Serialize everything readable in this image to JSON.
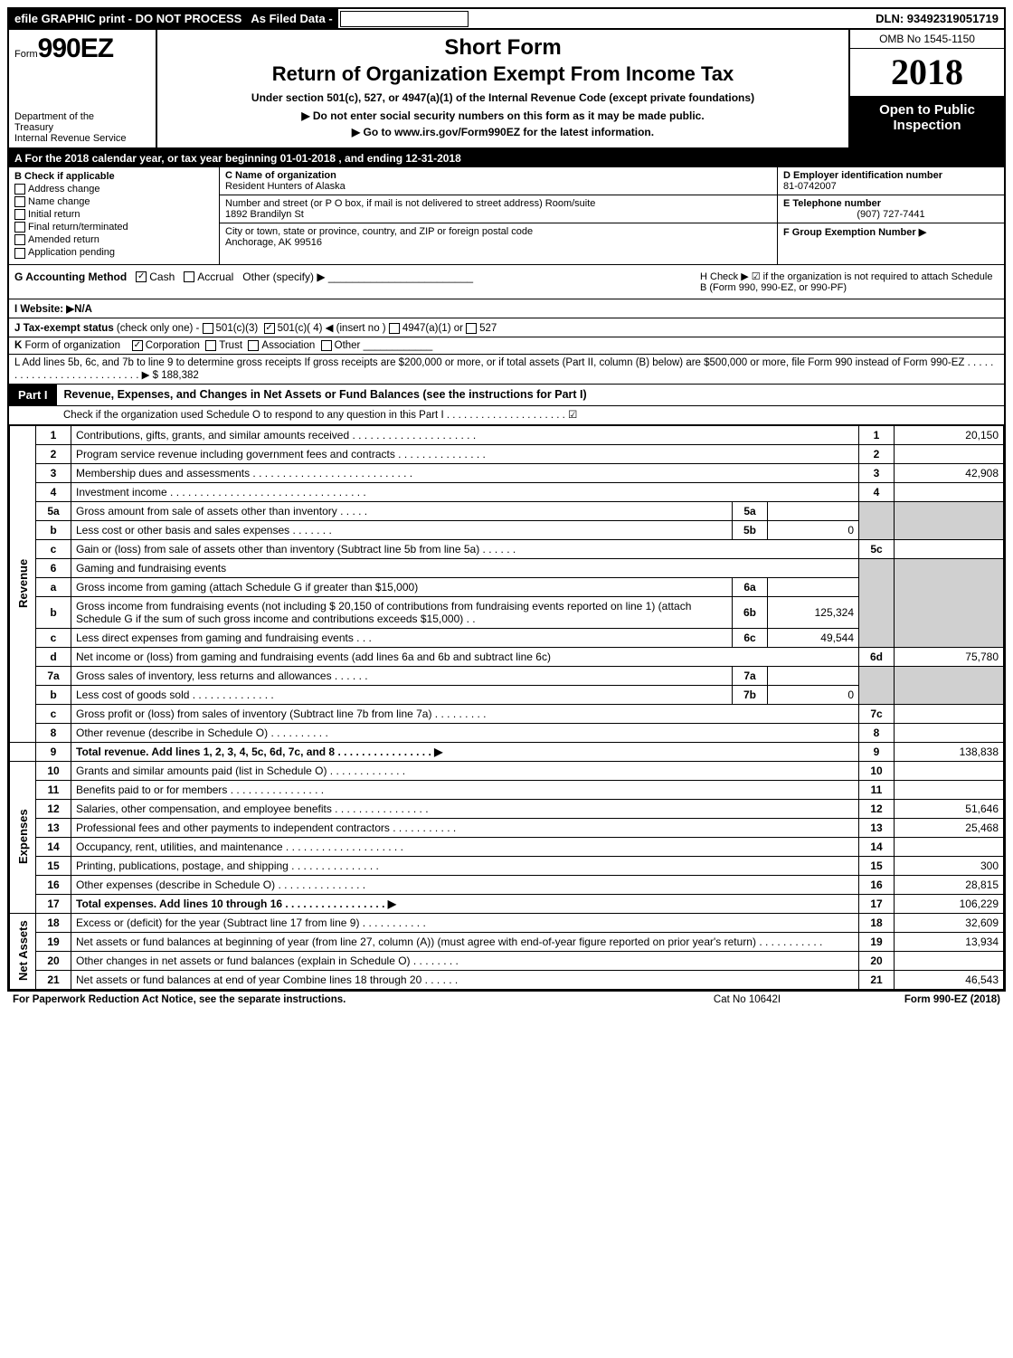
{
  "topbar": {
    "efile": "efile GRAPHIC print - DO NOT PROCESS",
    "asfiled": "As Filed Data -",
    "dln": "DLN: 93492319051719"
  },
  "header": {
    "form_prefix": "Form",
    "form_no": "990EZ",
    "short": "Short Form",
    "title": "Return of Organization Exempt From Income Tax",
    "sub": "Under section 501(c), 527, or 4947(a)(1) of the Internal Revenue Code (except private foundations)",
    "warn": "▶ Do not enter social security numbers on this form as it may be made public.",
    "goto": "▶ Go to www.irs.gov/Form990EZ for the latest information.",
    "dept1": "Department of the",
    "dept2": "Treasury",
    "dept3": "Internal Revenue Service",
    "omb": "OMB No 1545-1150",
    "year": "2018",
    "open_public": "Open to Public Inspection"
  },
  "rowA": "A  For the 2018 calendar year, or tax year beginning 01-01-2018          , and ending 12-31-2018",
  "colB": {
    "hdr": "B  Check if applicable",
    "items": [
      "Address change",
      "Name change",
      "Initial return",
      "Final return/terminated",
      "Amended return",
      "Application pending"
    ]
  },
  "colC": {
    "name_label": "C Name of organization",
    "name": "Resident Hunters of Alaska",
    "addr_label": "Number and street (or P O box, if mail is not delivered to street address)  Room/suite",
    "addr": "1892 Brandilyn St",
    "city_label": "City or town, state or province, country, and ZIP or foreign postal code",
    "city": "Anchorage, AK  99516"
  },
  "colD": {
    "d_label": "D Employer identification number",
    "ein": "81-0742007",
    "e_label": "E Telephone number",
    "phone": "(907) 727-7441",
    "f_label": "F Group Exemption Number   ▶"
  },
  "rowG": {
    "label": "G Accounting Method",
    "cash": "Cash",
    "accrual": "Accrual",
    "other": "Other (specify) ▶",
    "h": "H   Check ▶  ☑  if the organization is not required to attach Schedule B (Form 990, 990-EZ, or 990-PF)"
  },
  "rowI": "I Website: ▶N/A",
  "rowJ": "J Tax-exempt status (check only one) - ☐ 501(c)(3)  ☑ 501(c)( 4) ◀ (insert no ) ☐ 4947(a)(1) or ☐ 527",
  "rowK": "K Form of organization    ☑ Corporation  ☐ Trust  ☐ Association  ☐ Other",
  "rowL": {
    "text": "L Add lines 5b, 6c, and 7b to line 9 to determine gross receipts  If gross receipts are $200,000 or more, or if total assets (Part II, column (B) below) are $500,000 or more, file Form 990 instead of Form 990-EZ  . . . . . . . . . . . . . . . . . . . . . . . . . . . ▶ $ 188,382"
  },
  "part1": {
    "tab": "Part I",
    "title": "Revenue, Expenses, and Changes in Net Assets or Fund Balances (see the instructions for Part I)",
    "sub": "Check if the organization used Schedule O to respond to any question in this Part I . . . . . . . . . . . . . . . . . . . . .  ☑"
  },
  "vtabs": {
    "rev": "Revenue",
    "exp": "Expenses",
    "net": "Net Assets"
  },
  "lines": {
    "l1": {
      "no": "1",
      "desc": "Contributions, gifts, grants, and similar amounts received . . . . . . . . . . . . . . . . . . . . .",
      "rno": "1",
      "rval": "20,150"
    },
    "l2": {
      "no": "2",
      "desc": "Program service revenue including government fees and contracts . . . . . . . . . . . . . . .",
      "rno": "2",
      "rval": ""
    },
    "l3": {
      "no": "3",
      "desc": "Membership dues and assessments . . . . . . . . . . . . . . . . . . . . . . . . . . .",
      "rno": "3",
      "rval": "42,908"
    },
    "l4": {
      "no": "4",
      "desc": "Investment income . . . . . . . . . . . . . . . . . . . . . . . . . . . . . . . . .",
      "rno": "4",
      "rval": ""
    },
    "l5a": {
      "no": "5a",
      "desc": "Gross amount from sale of assets other than inventory . . . . .",
      "mno": "5a",
      "mval": ""
    },
    "l5b": {
      "no": "b",
      "desc": "Less  cost or other basis and sales expenses . . . . . . .",
      "mno": "5b",
      "mval": "0"
    },
    "l5c": {
      "no": "c",
      "desc": "Gain or (loss) from sale of assets other than inventory (Subtract line 5b from line 5a) . . . . . .",
      "rno": "5c",
      "rval": ""
    },
    "l6": {
      "no": "6",
      "desc": "Gaming and fundraising events"
    },
    "l6a": {
      "no": "a",
      "desc": "Gross income from gaming (attach Schedule G if greater than $15,000)",
      "mno": "6a",
      "mval": ""
    },
    "l6b": {
      "no": "b",
      "desc": "Gross income from fundraising events (not including $  20,150          of contributions from fundraising events reported on line 1) (attach Schedule G if the sum of such gross income and contributions exceeds $15,000)  . .",
      "mno": "6b",
      "mval": "125,324"
    },
    "l6c": {
      "no": "c",
      "desc": "Less  direct expenses from gaming and fundraising events       . . .",
      "mno": "6c",
      "mval": "49,544"
    },
    "l6d": {
      "no": "d",
      "desc": "Net income or (loss) from gaming and fundraising events (add lines 6a and 6b and subtract line 6c)",
      "rno": "6d",
      "rval": "75,780"
    },
    "l7a": {
      "no": "7a",
      "desc": "Gross sales of inventory, less returns and allowances . . . . . .",
      "mno": "7a",
      "mval": ""
    },
    "l7b": {
      "no": "b",
      "desc": "Less  cost of goods sold             . . . . . . . . . . . . . .",
      "mno": "7b",
      "mval": "0"
    },
    "l7c": {
      "no": "c",
      "desc": "Gross profit or (loss) from sales of inventory (Subtract line 7b from line 7a) . . . . . . . . .",
      "rno": "7c",
      "rval": ""
    },
    "l8": {
      "no": "8",
      "desc": "Other revenue (describe in Schedule O)                         . . . . . . . . . .",
      "rno": "8",
      "rval": ""
    },
    "l9": {
      "no": "9",
      "desc": "Total revenue. Add lines 1, 2, 3, 4, 5c, 6d, 7c, and 8  . . . . . . . . . . . . . . . .   ▶",
      "rno": "9",
      "rval": "138,838"
    },
    "l10": {
      "no": "10",
      "desc": "Grants and similar amounts paid (list in Schedule O)          . . . . . . . . . . . . .",
      "rno": "10",
      "rval": ""
    },
    "l11": {
      "no": "11",
      "desc": "Benefits paid to or for members                    . . . . . . . . . . . . . . . .",
      "rno": "11",
      "rval": ""
    },
    "l12": {
      "no": "12",
      "desc": "Salaries, other compensation, and employee benefits . . . . . . . . . . . . . . . .",
      "rno": "12",
      "rval": "51,646"
    },
    "l13": {
      "no": "13",
      "desc": "Professional fees and other payments to independent contractors  . . . . . . . . . . .",
      "rno": "13",
      "rval": "25,468"
    },
    "l14": {
      "no": "14",
      "desc": "Occupancy, rent, utilities, and maintenance . . . . . . . . . . . . . . . . . . . .",
      "rno": "14",
      "rval": ""
    },
    "l15": {
      "no": "15",
      "desc": "Printing, publications, postage, and shipping          . . . . . . . . . . . . . . .",
      "rno": "15",
      "rval": "300"
    },
    "l16": {
      "no": "16",
      "desc": "Other expenses (describe in Schedule O)               . . . . . . . . . . . . . . .",
      "rno": "16",
      "rval": "28,815"
    },
    "l17": {
      "no": "17",
      "desc": "Total expenses. Add lines 10 through 16         . . . . . . . . . . . . . . . . .   ▶",
      "rno": "17",
      "rval": "106,229"
    },
    "l18": {
      "no": "18",
      "desc": "Excess or (deficit) for the year (Subtract line 17 from line 9)      . . . . . . . . . . .",
      "rno": "18",
      "rval": "32,609"
    },
    "l19": {
      "no": "19",
      "desc": "Net assets or fund balances at beginning of year (from line 27, column (A)) (must agree with end-of-year figure reported on prior year's return)                . . . . . . . . . . .",
      "rno": "19",
      "rval": "13,934"
    },
    "l20": {
      "no": "20",
      "desc": "Other changes in net assets or fund balances (explain in Schedule O)     . . . . . . . .",
      "rno": "20",
      "rval": ""
    },
    "l21": {
      "no": "21",
      "desc": "Net assets or fund balances at end of year  Combine lines 18 through 20       . . . . . .",
      "rno": "21",
      "rval": "46,543"
    }
  },
  "footer": {
    "l": "For Paperwork Reduction Act Notice, see the separate instructions.",
    "m": "Cat No  10642I",
    "r": "Form 990-EZ (2018)"
  }
}
